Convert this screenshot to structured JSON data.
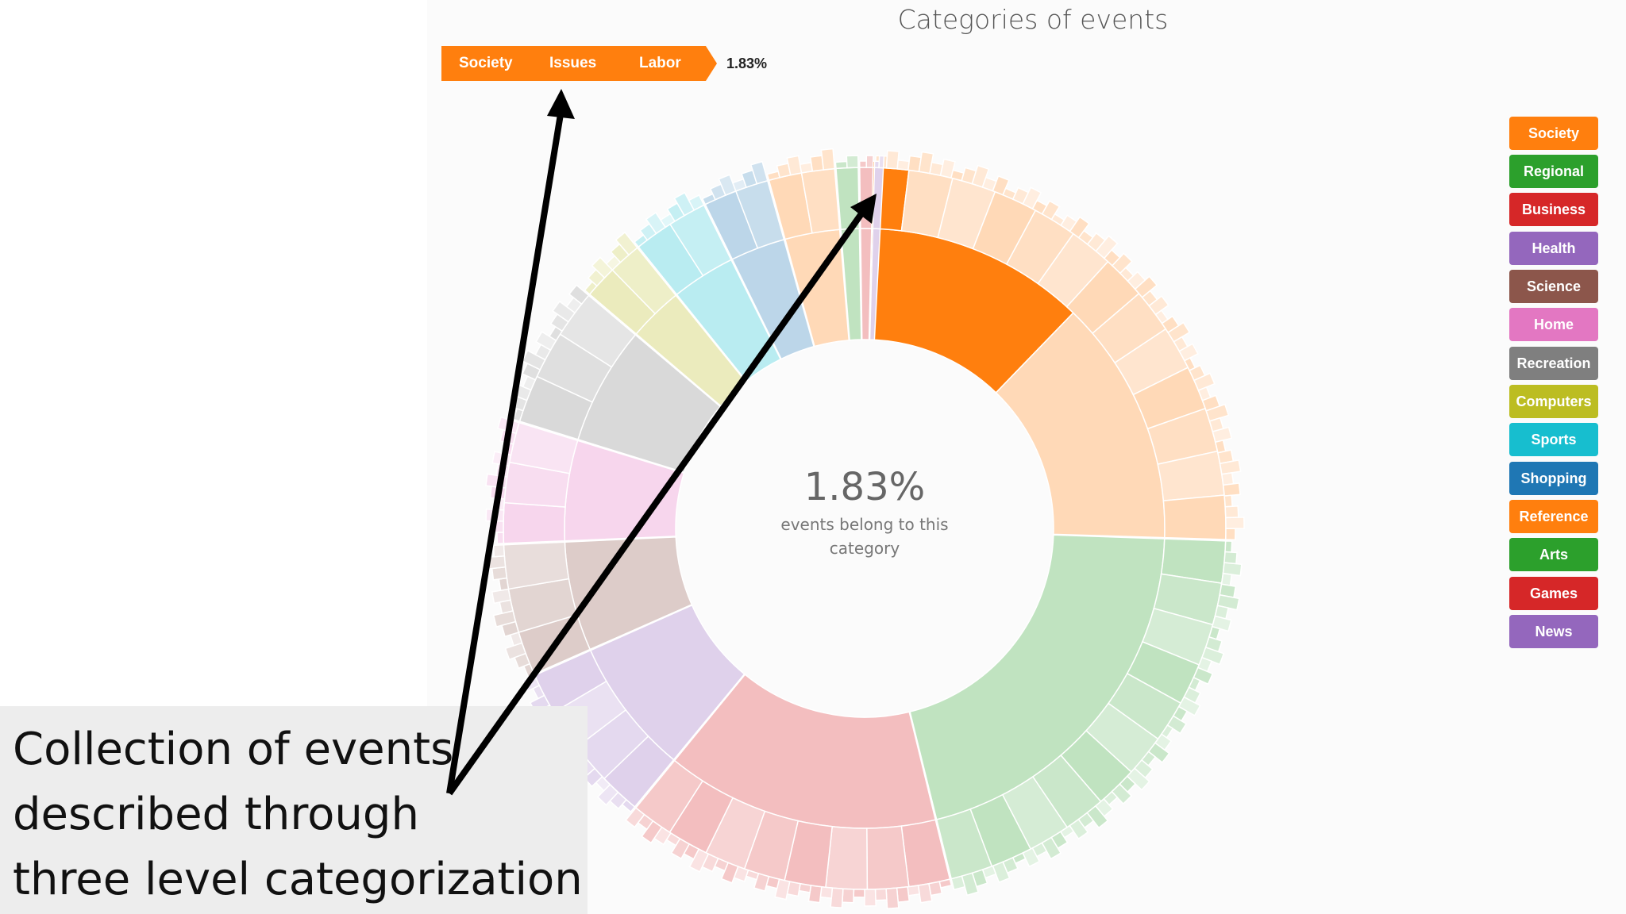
{
  "title": "Categories of events",
  "breadcrumb": {
    "items": [
      "Society",
      "Issues",
      "Labor"
    ],
    "percentage": "1.83%"
  },
  "center": {
    "percentage": "1.83%",
    "text": "events belong to this category"
  },
  "legend": [
    {
      "label": "Society",
      "color": "#ff7f0e"
    },
    {
      "label": "Regional",
      "color": "#2ca02c"
    },
    {
      "label": "Business",
      "color": "#d62728"
    },
    {
      "label": "Health",
      "color": "#9467bd"
    },
    {
      "label": "Science",
      "color": "#8c564b"
    },
    {
      "label": "Home",
      "color": "#e377c2"
    },
    {
      "label": "Recreation",
      "color": "#7f7f7f"
    },
    {
      "label": "Computers",
      "color": "#bcbd22"
    },
    {
      "label": "Sports",
      "color": "#17becf"
    },
    {
      "label": "Shopping",
      "color": "#1f77b4"
    },
    {
      "label": "Reference",
      "color": "#ff7f0e"
    },
    {
      "label": "Arts",
      "color": "#2ca02c"
    },
    {
      "label": "Games",
      "color": "#d62728"
    },
    {
      "label": "News",
      "color": "#9467bd"
    }
  ],
  "annotation": {
    "lines": [
      "Collection of events",
      "described through",
      "three level categorization"
    ]
  },
  "chart_data": {
    "type": "sunburst",
    "title": "Categories of events",
    "highlighted_path": [
      "Society",
      "Issues",
      "Labor"
    ],
    "highlighted_value_percent": 1.83,
    "top_level": [
      {
        "label": "Society",
        "share": 0.26
      },
      {
        "label": "Regional",
        "share": 0.21
      },
      {
        "label": "Business",
        "share": 0.15
      },
      {
        "label": "Health",
        "share": 0.075
      },
      {
        "label": "Science",
        "share": 0.06
      },
      {
        "label": "Home",
        "share": 0.055
      },
      {
        "label": "Recreation",
        "share": 0.065
      },
      {
        "label": "Computers",
        "share": 0.03
      },
      {
        "label": "Sports",
        "share": 0.035
      },
      {
        "label": "Shopping",
        "share": 0.03
      },
      {
        "label": "Reference",
        "share": 0.03
      },
      {
        "label": "Arts",
        "share": 0.01
      },
      {
        "label": "Games",
        "share": 0.006
      },
      {
        "label": "News",
        "share": 0.004
      }
    ]
  }
}
